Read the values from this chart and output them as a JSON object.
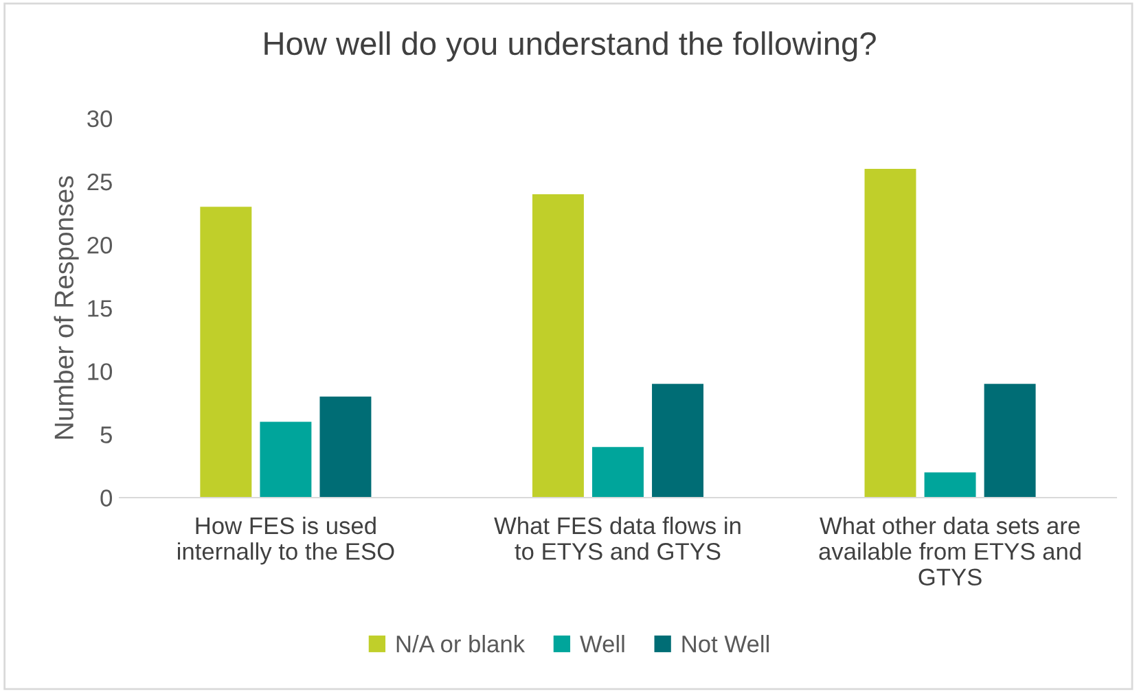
{
  "chart_data": {
    "type": "bar",
    "title": "How well do you understand the following?",
    "ylabel": "Number of Responses",
    "categories": [
      "How FES is used\ninternally to the ESO",
      "What FES data flows in\nto ETYS and GTYS",
      "What other data sets are\navailable from ETYS and\nGTYS"
    ],
    "series": [
      {
        "name": "N/A or blank",
        "color": "#c0cf2a",
        "values": [
          23,
          24,
          26
        ]
      },
      {
        "name": "Well",
        "color": "#00a59b",
        "values": [
          6,
          4,
          2
        ]
      },
      {
        "name": "Not Well",
        "color": "#006d75",
        "values": [
          8,
          9,
          9
        ]
      }
    ],
    "ylim": [
      0,
      30
    ],
    "yticks": [
      0,
      5,
      10,
      15,
      20,
      25,
      30
    ],
    "grid": false,
    "legend": "bottom"
  }
}
